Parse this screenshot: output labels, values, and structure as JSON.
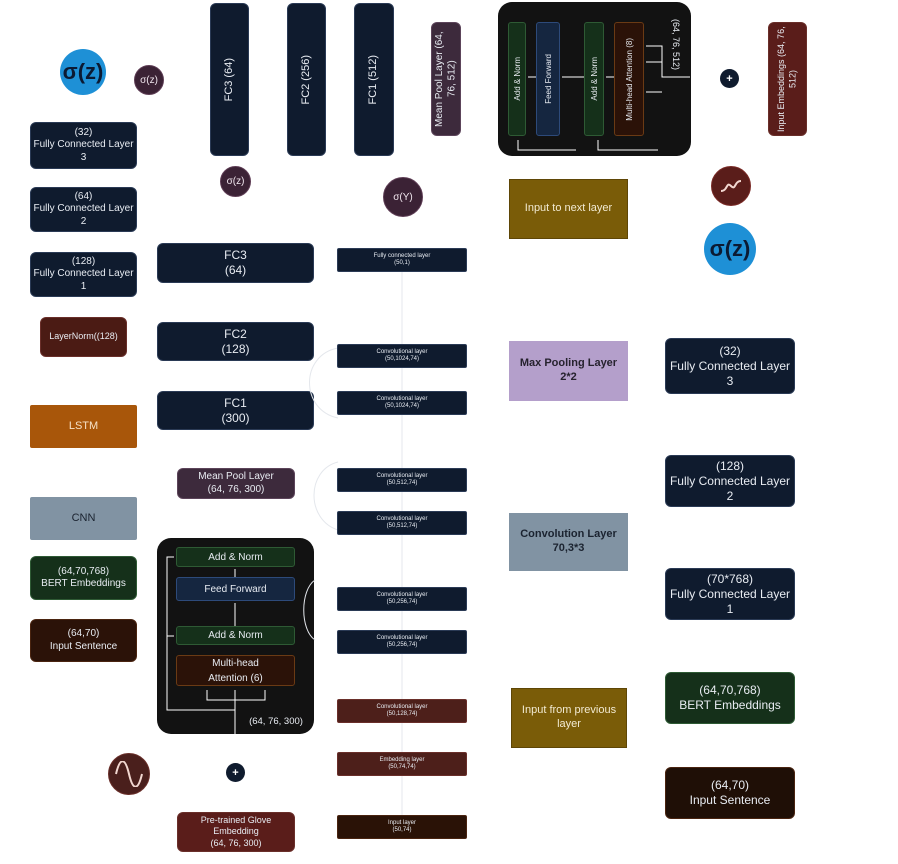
{
  "left_legend": {
    "fc3": {
      "dim": "(32)",
      "name": "Fully Connected Layer",
      "num": "3"
    },
    "fc2": {
      "dim": "(64)",
      "name": "Fully Connected Layer",
      "num": "2"
    },
    "fc1": {
      "dim": "(128)",
      "name": "Fully Connected Layer",
      "num": "1"
    },
    "layernorm": "LayerNorm((128)",
    "lstm": "LSTM",
    "cnn": "CNN",
    "bert": {
      "dim": "(64,70,768)",
      "name": "BERT Embeddings"
    },
    "input": {
      "dim": "(64,70)",
      "name": "Input Sentence"
    }
  },
  "sigma": {
    "big": "σ(z)",
    "small": "σ(z)",
    "y": "σ(Y)"
  },
  "plus_symbol": "+",
  "top_model": {
    "fc3": "FC3 (64)",
    "fc2": "FC2 (256)",
    "fc1": "FC1 (512)",
    "meanpool": "Mean Pool Layer (64, 76, 512)",
    "encoder": {
      "add_norm_1": "Add & Norm",
      "feed_forward": "Feed Forward",
      "add_norm_2": "Add & Norm",
      "mha": "Multi-head Attention (8)",
      "shape": "(64, 76, 512)"
    },
    "input_emb": "Input Embeddings (64, 76, 512)"
  },
  "mid_model": {
    "fc3": {
      "name": "FC3",
      "dim": "(64)"
    },
    "fc2": {
      "name": "FC2",
      "dim": "(128)"
    },
    "fc1": {
      "name": "FC1",
      "dim": "(300)"
    },
    "meanpool": {
      "name": "Mean Pool Layer",
      "dim": "(64, 76, 300)"
    },
    "encoder": {
      "add_norm_top": "Add & Norm",
      "feed_forward": "Feed Forward",
      "add_norm_bottom": "Add & Norm",
      "mha_1": "Multi-head",
      "mha_2": "Attention (6)",
      "shape": "(64, 76, 300)"
    },
    "glove": {
      "l1": "Pre-trained Glove",
      "l2": "Embedding",
      "dim": "(64, 76, 300)"
    }
  },
  "cnn_stack": [
    {
      "name": "Fully connected layer",
      "dim": "(50,1)"
    },
    {
      "name": "Convolutional layer",
      "dim": "(50,1024,74)"
    },
    {
      "name": "Convolutional layer",
      "dim": "(50,1024,74)"
    },
    {
      "name": "Convolutional layer",
      "dim": "(50,512,74)"
    },
    {
      "name": "Convolutional layer",
      "dim": "(50,512,74)"
    },
    {
      "name": "Convolutional layer",
      "dim": "(50,256,74)"
    },
    {
      "name": "Convolutional layer",
      "dim": "(50,256,74)"
    },
    {
      "name": "Convolutional layer",
      "dim": "(50,128,74)"
    },
    {
      "name": "Embedding layer",
      "dim": "(50,74,74)"
    },
    {
      "name": "Input layer",
      "dim": "(50,74)"
    }
  ],
  "cnn_legend": {
    "next": "Input to next layer",
    "maxpool": {
      "l1": "Max Pooling Layer",
      "l2": "2*2"
    },
    "conv": {
      "l1": "Convolution Layer",
      "l2": "70,3*3"
    },
    "prev": "Input from previous layer"
  },
  "right_legend": {
    "fc3": {
      "dim": "(32)",
      "name": "Fully Connected Layer",
      "num": "3"
    },
    "fc2": {
      "dim": "(128)",
      "name": "Fully Connected Layer",
      "num": "2"
    },
    "fc1": {
      "dim": "(70*768)",
      "name": "Fully Connected Layer",
      "num": "1"
    },
    "bert": {
      "dim": "(64,70,768)",
      "name": "BERT Embeddings"
    },
    "input": {
      "dim": "(64,70)",
      "name": "Input Sentence"
    }
  }
}
